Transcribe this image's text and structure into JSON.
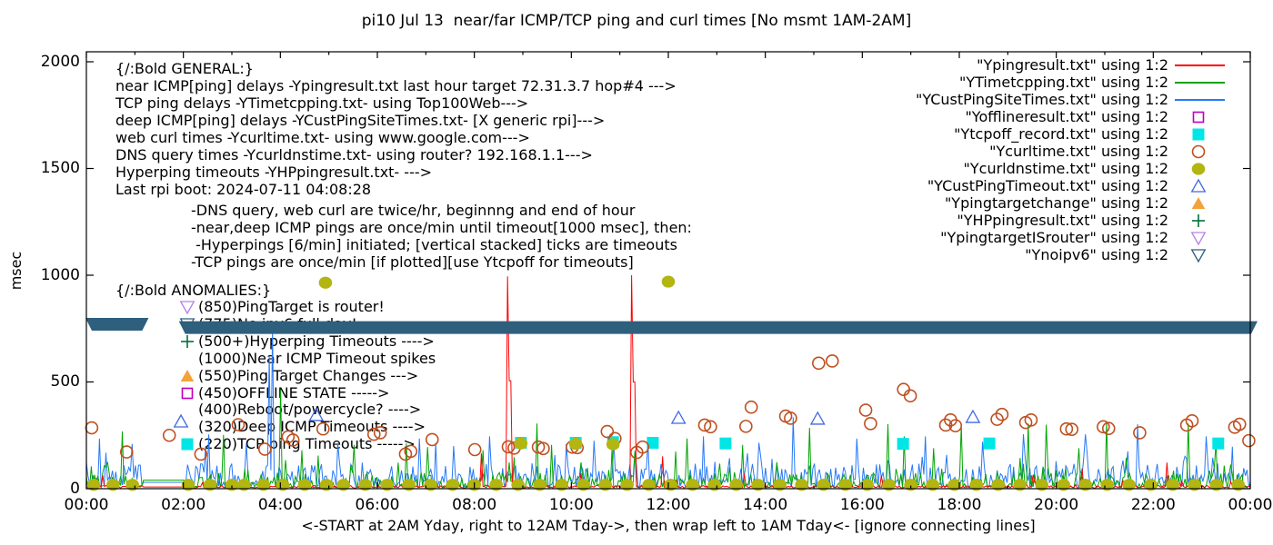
{
  "title": "pi10 Jul 13  near/far ICMP/TCP ping and curl times [No msmt 1AM-2AM]",
  "axes": {
    "ylabel": "msec",
    "xlabel_caption": "<-START at 2AM Yday, right to 12AM Tday->, then wrap left to 1AM Tday<- [ignore connecting lines]",
    "x_ticks": [
      "00:00",
      "02:00",
      "04:00",
      "06:00",
      "08:00",
      "10:00",
      "12:00",
      "14:00",
      "16:00",
      "18:00",
      "20:00",
      "22:00",
      "00:00"
    ],
    "y_ticks": [
      "0",
      "500",
      "1000",
      "1500",
      "2000"
    ]
  },
  "legend": [
    {
      "label": "\"Ypingresult.txt\" using 1:2",
      "swatch": "line",
      "color": "#fe0000"
    },
    {
      "label": "\"YTimetcpping.txt\" using 1:2",
      "swatch": "line",
      "color": "#00a400"
    },
    {
      "label": "\"YCustPingSiteTimes.txt\" using 1:2",
      "swatch": "line",
      "color": "#2779f6"
    },
    {
      "label": "\"Yofflineresult.txt\" using 1:2",
      "swatch": "square-open",
      "color": "#bd00bd"
    },
    {
      "label": "\"Ytcpoff_record.txt\" using 1:2",
      "swatch": "square-filled",
      "color": "#00e5e5"
    },
    {
      "label": "\"Ycurltime.txt\" using 1:2",
      "swatch": "circle-open",
      "color": "#bf4f1f"
    },
    {
      "label": "\"Ycurldnstime.txt\" using 1:2",
      "swatch": "circle-filled",
      "color": "#b3b511"
    },
    {
      "label": "\"YCustPingTimeout.txt\" using 1:2",
      "swatch": "triangle-open",
      "color": "#4169e1"
    },
    {
      "label": "\"Ypingtargetchange\" using 1:2",
      "swatch": "triangle-filled",
      "color": "#f2a33a"
    },
    {
      "label": "\"YHPpingresult.txt\" using 1:2",
      "swatch": "plus",
      "color": "#00703c"
    },
    {
      "label": "\"YpingtargetISrouter\" using 1:2",
      "swatch": "triangle-down-open",
      "color": "#b97fe8"
    },
    {
      "label": "\"Ynoipv6\" using 1:2",
      "swatch": "triangle-down-open",
      "color": "#2e5f7d"
    }
  ],
  "annotations": {
    "general": {
      "header": "{/:Bold GENERAL:}",
      "lines": [
        "near ICMP[ping] delays -Ypingresult.txt last hour target 72.31.3.7 hop#4 --->",
        "TCP ping delays -YTimetcpping.txt- using Top100Web--->",
        "deep ICMP[ping] delays -YCustPingSiteTimes.txt- [X generic rpi]--->",
        "web curl times -Ycurltime.txt- using www.google.com--->",
        "DNS query times -Ycurldnstime.txt- using router? 192.168.1.1--->",
        "Hyperping timeouts -YHPpingresult.txt- --->",
        "Last rpi boot: 2024-07-11 04:08:28"
      ],
      "indented": [
        "-DNS query, web curl are twice/hr, beginnng and end of hour",
        "-near,deep ICMP pings are once/min until timeout[1000 msec], then:",
        " -Hyperpings [6/min] initiated; [vertical stacked] ticks are timeouts",
        "-TCP pings are once/min [if plotted][use Ytcpoff for timeouts]"
      ]
    },
    "anomalies": {
      "header": "{/:Bold ANOMALIES:}",
      "items": [
        {
          "marker": "triangle-down-open",
          "color": "#b97fe8",
          "text": "(850)PingTarget is router!"
        },
        {
          "marker": "triangle-down-open",
          "color": "#2e5f7d",
          "text": "(775)No ipv6 full day!"
        },
        {
          "marker": "plus",
          "color": "#00703c",
          "text": "(500+)Hyperping Timeouts ---->"
        },
        {
          "marker": "none",
          "color": "",
          "text": "(1000)Near ICMP Timeout spikes"
        },
        {
          "marker": "triangle-filled",
          "color": "#f2a33a",
          "text": "(550)Ping Target Changes --->"
        },
        {
          "marker": "square-open",
          "color": "#bd00bd",
          "text": "(450)OFFLINE STATE ----->"
        },
        {
          "marker": "none",
          "color": "",
          "text": "(400)Reboot/powercycle? ---->"
        },
        {
          "marker": "triangle-open",
          "color": "#4169e1",
          "text": "(320)Deep ICMP Timeouts ---->"
        },
        {
          "marker": "square-filled",
          "color": "#00e5e5",
          "text": "(220)TCP ping Timeouts ----->"
        }
      ]
    }
  },
  "chart_data": {
    "type": "line",
    "title": "pi10 Jul 13  near/far ICMP/TCP ping and curl times [No msmt 1AM-2AM]",
    "xlabel": "<-START at 2AM Yday, right to 12AM Tday->, then wrap left to 1AM Tday<- [ignore connecting lines]",
    "ylabel": "msec",
    "xlim_hours": [
      0,
      24
    ],
    "ylim": [
      0,
      2045
    ],
    "y_tick_values": [
      0,
      500,
      1000,
      1500,
      2000
    ],
    "x_tick_hours": [
      0,
      2,
      4,
      6,
      8,
      10,
      12,
      14,
      16,
      18,
      20,
      22,
      24
    ],
    "grid": false,
    "legend_position": "top-right",
    "no_measurement_gap_hours": [
      1.17,
      2.02
    ],
    "gap_flat_values": {
      "blue": 30,
      "green": 40,
      "red": 8
    },
    "noise_seed": 7,
    "samples": 714,
    "series": [
      {
        "name": "\"Ypingresult.txt\" using 1:2",
        "kind": "line",
        "color": "#fe0000",
        "base": [
          3,
          40
        ],
        "spikes": [
          [
            0.35,
            62,
            1
          ],
          [
            4.1,
            42,
            1
          ],
          [
            8.15,
            165,
            1
          ],
          [
            8.7,
            995,
            1
          ],
          [
            8.74,
            505,
            2
          ],
          [
            10.2,
            72,
            1
          ],
          [
            11.25,
            1000,
            1
          ],
          [
            11.29,
            500,
            2
          ],
          [
            11.9,
            152,
            1
          ],
          [
            13.6,
            70,
            1
          ],
          [
            16.4,
            62,
            1
          ],
          [
            19.55,
            65,
            1
          ],
          [
            20.55,
            95,
            1
          ],
          [
            22.3,
            122,
            1
          ]
        ]
      },
      {
        "name": "\"YTimetcpping.txt\" using 1:2",
        "kind": "line",
        "color": "#00a400",
        "base": [
          5,
          150
        ],
        "spikes": [
          [
            0.75,
            268,
            1
          ],
          [
            2.85,
            252,
            1
          ],
          [
            4.03,
            465,
            1
          ],
          [
            4.45,
            180,
            1
          ],
          [
            5.55,
            205,
            1
          ],
          [
            6.6,
            212,
            1
          ],
          [
            7.05,
            195,
            1
          ],
          [
            8.2,
            180,
            1
          ],
          [
            9.3,
            305,
            1
          ],
          [
            9.62,
            205,
            1
          ],
          [
            10.85,
            190,
            1
          ],
          [
            12.4,
            235,
            1
          ],
          [
            13.55,
            205,
            1
          ],
          [
            14.95,
            285,
            1
          ],
          [
            16.55,
            302,
            1
          ],
          [
            16.9,
            245,
            1
          ],
          [
            17.5,
            190,
            1
          ],
          [
            18.05,
            300,
            1
          ],
          [
            19.45,
            305,
            1
          ],
          [
            19.82,
            300,
            1
          ],
          [
            20.5,
            190,
            1
          ],
          [
            21.05,
            312,
            1
          ],
          [
            22.75,
            305,
            1
          ],
          [
            23.3,
            212,
            1
          ]
        ]
      },
      {
        "name": "\"YCustPingSiteTimes.txt\" using 1:2",
        "kind": "line",
        "color": "#2779f6",
        "base": [
          8,
          170
        ],
        "spikes": [
          [
            0.3,
            235,
            1
          ],
          [
            0.95,
            210,
            1
          ],
          [
            2.55,
            255,
            1
          ],
          [
            3.3,
            210,
            1
          ],
          [
            3.79,
            620,
            1
          ],
          [
            3.84,
            750,
            1
          ],
          [
            5.2,
            212,
            1
          ],
          [
            6.9,
            235,
            1
          ],
          [
            7.6,
            200,
            1
          ],
          [
            8.35,
            245,
            1
          ],
          [
            9.9,
            210,
            1
          ],
          [
            10.5,
            225,
            1
          ],
          [
            11.6,
            215,
            1
          ],
          [
            12.75,
            245,
            1
          ],
          [
            13.9,
            215,
            1
          ],
          [
            14.6,
            335,
            1
          ],
          [
            15.9,
            235,
            1
          ],
          [
            17.3,
            245,
            1
          ],
          [
            18.5,
            220,
            1
          ],
          [
            19.35,
            255,
            1
          ],
          [
            20.6,
            255,
            1
          ],
          [
            21.7,
            302,
            1
          ],
          [
            23.1,
            245,
            1
          ]
        ]
      },
      {
        "name": "\"Yofflineresult.txt\" using 1:2",
        "kind": "points",
        "marker": "square-open",
        "color": "#bd00bd",
        "points": []
      },
      {
        "name": "\"Ytcpoff_record.txt\" using 1:2",
        "kind": "points",
        "marker": "square-filled",
        "color": "#00e5e5",
        "points": [
          [
            8.96,
            215
          ],
          [
            10.09,
            215
          ],
          [
            10.86,
            218
          ],
          [
            11.68,
            215
          ],
          [
            13.18,
            212
          ],
          [
            16.84,
            210
          ],
          [
            18.62,
            212
          ],
          [
            23.34,
            212
          ]
        ]
      },
      {
        "name": "\"Ycurltime.txt\" using 1:2",
        "kind": "points",
        "marker": "circle-open",
        "color": "#bf4f1f",
        "points": [
          [
            0.11,
            285
          ],
          [
            0.83,
            172
          ],
          [
            1.71,
            250
          ],
          [
            2.36,
            162
          ],
          [
            3.13,
            300
          ],
          [
            3.68,
            185
          ],
          [
            4.16,
            243
          ],
          [
            4.26,
            228
          ],
          [
            4.88,
            280
          ],
          [
            5.93,
            255
          ],
          [
            6.06,
            262
          ],
          [
            6.58,
            162
          ],
          [
            6.69,
            175
          ],
          [
            7.13,
            230
          ],
          [
            8.01,
            183
          ],
          [
            8.7,
            196
          ],
          [
            8.82,
            190
          ],
          [
            9.32,
            195
          ],
          [
            9.42,
            188
          ],
          [
            10.02,
            195
          ],
          [
            10.12,
            192
          ],
          [
            10.74,
            268
          ],
          [
            10.9,
            235
          ],
          [
            11.35,
            170
          ],
          [
            11.47,
            195
          ],
          [
            12.75,
            298
          ],
          [
            12.87,
            290
          ],
          [
            13.6,
            292
          ],
          [
            13.71,
            382
          ],
          [
            14.42,
            340
          ],
          [
            14.52,
            330
          ],
          [
            15.1,
            588
          ],
          [
            15.38,
            598
          ],
          [
            16.07,
            368
          ],
          [
            16.17,
            305
          ],
          [
            16.85,
            465
          ],
          [
            16.99,
            435
          ],
          [
            17.72,
            298
          ],
          [
            17.82,
            322
          ],
          [
            17.92,
            295
          ],
          [
            18.78,
            325
          ],
          [
            18.88,
            348
          ],
          [
            19.37,
            310
          ],
          [
            19.48,
            322
          ],
          [
            20.21,
            280
          ],
          [
            20.32,
            278
          ],
          [
            20.97,
            290
          ],
          [
            21.08,
            282
          ],
          [
            21.72,
            262
          ],
          [
            22.69,
            298
          ],
          [
            22.8,
            318
          ],
          [
            23.68,
            288
          ],
          [
            23.78,
            302
          ],
          [
            23.97,
            225
          ]
        ]
      },
      {
        "name": "\"Ycurldnstime.txt\" using 1:2",
        "kind": "points",
        "marker": "circle-filled",
        "color": "#b3b511",
        "points": [
          [
            0.15,
            18
          ],
          [
            0.55,
            18
          ],
          [
            0.95,
            18
          ],
          [
            2.1,
            18
          ],
          [
            2.55,
            18
          ],
          [
            3.0,
            18
          ],
          [
            3.25,
            18
          ],
          [
            3.65,
            18
          ],
          [
            4.05,
            18
          ],
          [
            4.5,
            18
          ],
          [
            4.95,
            18
          ],
          [
            5.3,
            18
          ],
          [
            5.75,
            18
          ],
          [
            6.2,
            18
          ],
          [
            6.65,
            18
          ],
          [
            7.1,
            18
          ],
          [
            7.55,
            18
          ],
          [
            8.0,
            18
          ],
          [
            8.45,
            18
          ],
          [
            8.9,
            18
          ],
          [
            9.35,
            18
          ],
          [
            9.8,
            18
          ],
          [
            10.25,
            18
          ],
          [
            10.7,
            18
          ],
          [
            11.15,
            18
          ],
          [
            11.6,
            18
          ],
          [
            12.05,
            18
          ],
          [
            12.5,
            18
          ],
          [
            12.95,
            18
          ],
          [
            13.4,
            18
          ],
          [
            13.85,
            18
          ],
          [
            14.3,
            18
          ],
          [
            14.75,
            18
          ],
          [
            15.2,
            18
          ],
          [
            15.65,
            18
          ],
          [
            16.1,
            18
          ],
          [
            16.55,
            18
          ],
          [
            17.0,
            18
          ],
          [
            17.45,
            18
          ],
          [
            17.9,
            18
          ],
          [
            18.35,
            18
          ],
          [
            18.8,
            18
          ],
          [
            19.25,
            18
          ],
          [
            19.7,
            18
          ],
          [
            20.15,
            18
          ],
          [
            20.6,
            18
          ],
          [
            21.05,
            18
          ],
          [
            21.5,
            18
          ],
          [
            21.95,
            18
          ],
          [
            22.4,
            18
          ],
          [
            22.85,
            18
          ],
          [
            23.3,
            18
          ],
          [
            23.75,
            18
          ],
          [
            4.93,
            965
          ],
          [
            12.0,
            970
          ],
          [
            8.96,
            212
          ],
          [
            10.09,
            210
          ],
          [
            10.86,
            208
          ]
        ]
      },
      {
        "name": "\"YCustPingTimeout.txt\" using 1:2",
        "kind": "points",
        "marker": "triangle-open",
        "color": "#4169e1",
        "points": [
          [
            4.74,
            345
          ],
          [
            12.21,
            332
          ],
          [
            15.08,
            328
          ],
          [
            18.28,
            336
          ]
        ]
      },
      {
        "name": "\"Ypingtargetchange\" using 1:2",
        "kind": "points",
        "marker": "triangle-filled",
        "color": "#f2a33a",
        "points": []
      },
      {
        "name": "\"YHPpingresult.txt\" using 1:2",
        "kind": "points",
        "marker": "plus",
        "color": "#00703c",
        "points": []
      },
      {
        "name": "\"YpingtargetISrouter\" using 1:2",
        "kind": "points",
        "marker": "triangle-down-open",
        "color": "#b97fe8",
        "points": []
      },
      {
        "name": "\"Ynoipv6\" using 1:2",
        "kind": "band",
        "color": "#2e5f7d",
        "segments": [
          [
            0.0,
            1.17,
            770
          ],
          [
            2.02,
            24.12,
            755
          ]
        ]
      }
    ]
  }
}
